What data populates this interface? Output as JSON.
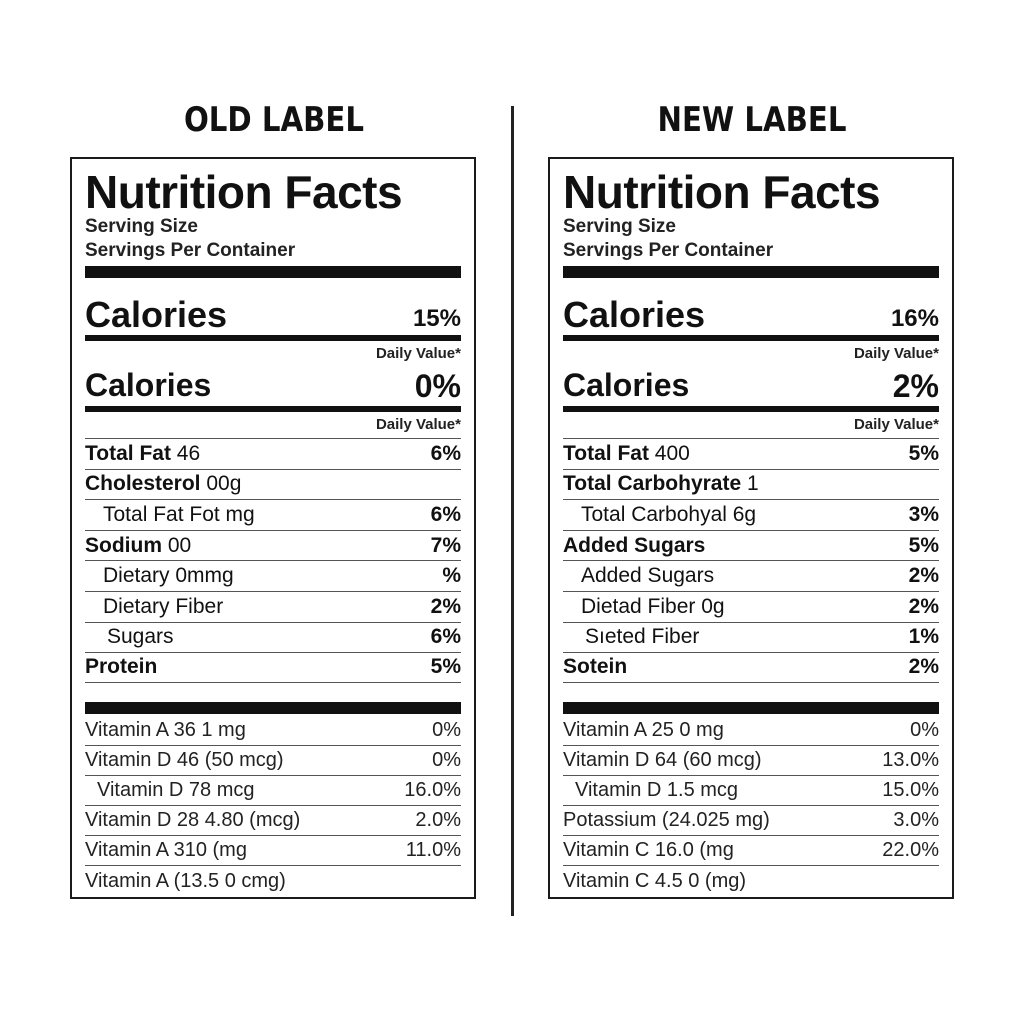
{
  "old": {
    "heading": "OLD LABEL",
    "title": "Nutrition Facts",
    "serving_size": "Serving Size",
    "servings_per_container": "Servings Per Container",
    "calories_1": {
      "label": "Calories",
      "percent": "15%"
    },
    "daily_value_1": "Daily Value*",
    "calories_2": {
      "label": "Calories",
      "percent": "0%"
    },
    "daily_value_2": "Daily Value*",
    "nutrients": [
      {
        "name": "Total Fat",
        "amount": " 46",
        "percent": "6%",
        "bold": true,
        "indent": 0
      },
      {
        "name": "Cholesterol",
        "amount": " 00g",
        "percent": "",
        "bold": true,
        "indent": 0
      },
      {
        "name": "",
        "amount": "Total Fat Fot mg",
        "percent": "6%",
        "bold": false,
        "indent": 1
      },
      {
        "name": "Sodium",
        "amount": " 00",
        "percent": "7%",
        "bold": true,
        "indent": 0
      },
      {
        "name": "",
        "amount": "Dietary 0mmg",
        "percent": "%",
        "bold": false,
        "indent": 1
      },
      {
        "name": "",
        "amount": "Dietary Fiber",
        "percent": "2%",
        "bold": false,
        "indent": 1
      },
      {
        "name": "",
        "amount": "Sugars",
        "percent": "6%",
        "bold": false,
        "indent": 2
      },
      {
        "name": "Protein",
        "amount": "",
        "percent": "5%",
        "bold": true,
        "indent": 0
      }
    ],
    "vitamins": [
      {
        "name": "Vitamin A 36 1 mg",
        "percent": "0%",
        "indent": 0
      },
      {
        "name": "Vitamin D 46 (50 mcg)",
        "percent": "0%",
        "indent": 0
      },
      {
        "name": "Vitamin D 78 mcg",
        "percent": "16.0%",
        "indent": 1
      },
      {
        "name": "Vitamin D 28 4.80 (mcg)",
        "percent": "2.0%",
        "indent": 0
      },
      {
        "name": "Vitamin A 310 (mg",
        "percent": "11.0%",
        "indent": 0
      },
      {
        "name": "Vitamin A (13.5 0 cmg)",
        "percent": "",
        "indent": 0
      }
    ]
  },
  "new": {
    "heading": "NEW LABEL",
    "title": "Nutrition Facts",
    "serving_size": "Serving Size",
    "servings_per_container": "Servings Per Container",
    "calories_1": {
      "label": "Calories",
      "percent": "16%"
    },
    "daily_value_1": "Daily Value*",
    "calories_2": {
      "label": "Calories",
      "percent": "2%"
    },
    "daily_value_2": "Daily Value*",
    "nutrients": [
      {
        "name": "Total Fat",
        "amount": " 400",
        "percent": "5%",
        "bold": true,
        "indent": 0
      },
      {
        "name": "Total Carbohyrate",
        "amount": " 1",
        "percent": "",
        "bold": true,
        "indent": 0
      },
      {
        "name": "",
        "amount": "Total Carbohyal 6g",
        "percent": "3%",
        "bold": false,
        "indent": 1
      },
      {
        "name": "Added Sugars",
        "amount": "",
        "percent": "5%",
        "bold": true,
        "indent": 0
      },
      {
        "name": "",
        "amount": "Added Sugars",
        "percent": "2%",
        "bold": false,
        "indent": 1
      },
      {
        "name": "",
        "amount": "Dietad Fiber 0g",
        "percent": "2%",
        "bold": false,
        "indent": 1
      },
      {
        "name": "",
        "amount": "Sıeted Fiber",
        "percent": "1%",
        "bold": false,
        "indent": 2
      },
      {
        "name": "Sotein",
        "amount": "",
        "percent": "2%",
        "bold": true,
        "indent": 0
      }
    ],
    "vitamins": [
      {
        "name": "Vitamin A 25 0 mg",
        "percent": "0%",
        "indent": 0
      },
      {
        "name": "Vitamin D 64 (60 mcg)",
        "percent": "13.0%",
        "indent": 0
      },
      {
        "name": "Vitamin D 1.5 mcg",
        "percent": "15.0%",
        "indent": 1
      },
      {
        "name": "Potassium (24.025 mg)",
        "percent": "3.0%",
        "indent": 0
      },
      {
        "name": "Vitamin C 16.0 (mg",
        "percent": "22.0%",
        "indent": 0
      },
      {
        "name": "Vitamin C 4.5 0 (mg)",
        "percent": "",
        "indent": 0
      }
    ]
  }
}
